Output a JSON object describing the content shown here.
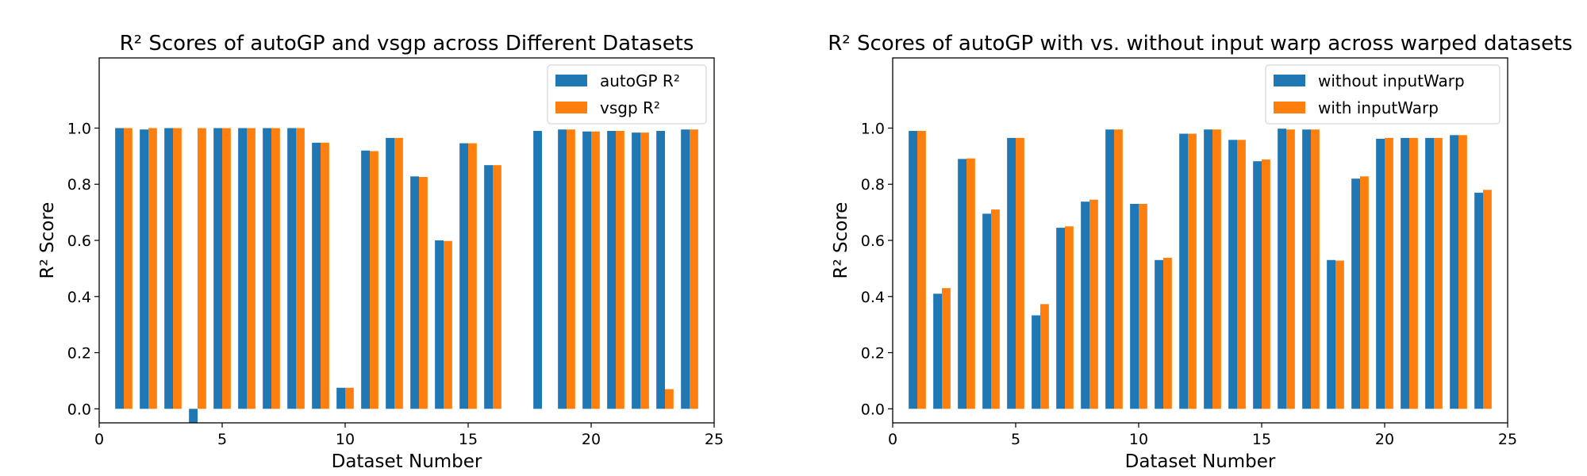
{
  "colors": {
    "series_a": "#1f77b4",
    "series_b": "#ff7f0e",
    "axes": "#000000",
    "legend_border": "#cccccc"
  },
  "chart_data": [
    {
      "type": "bar",
      "title": "R² Scores of autoGP and vsgp across Different Datasets",
      "xlabel": "Dataset Number",
      "ylabel": "R² Score",
      "xlim": [
        0,
        25
      ],
      "ylim": [
        -0.05,
        1.25
      ],
      "x_ticks": [
        0,
        5,
        10,
        15,
        20,
        25
      ],
      "y_ticks": [
        0.0,
        0.2,
        0.4,
        0.6,
        0.8,
        1.0
      ],
      "grid": false,
      "legend_position": "top-right",
      "x": [
        1,
        2,
        3,
        4,
        5,
        6,
        7,
        8,
        9,
        10,
        11,
        12,
        13,
        14,
        15,
        16,
        17,
        18,
        19,
        20,
        21,
        22,
        23,
        24
      ],
      "series": [
        {
          "name": "autoGP R²",
          "values": [
            1.0,
            0.995,
            1.0,
            -0.05,
            1.0,
            1.0,
            1.0,
            1.0,
            0.948,
            0.075,
            0.92,
            0.965,
            0.828,
            0.6,
            0.946,
            0.868,
            0.0,
            0.99,
            0.995,
            0.988,
            0.99,
            0.984,
            0.99,
            0.995
          ]
        },
        {
          "name": "vsgp R²",
          "values": [
            1.0,
            1.0,
            1.0,
            1.0,
            1.0,
            1.0,
            1.0,
            1.0,
            0.948,
            0.075,
            0.918,
            0.965,
            0.826,
            0.598,
            0.946,
            0.868,
            0.0,
            0.0,
            0.995,
            0.988,
            0.99,
            0.984,
            0.07,
            0.995
          ]
        }
      ]
    },
    {
      "type": "bar",
      "title": "R² Scores of autoGP with vs. without input warp across warped datasets",
      "xlabel": "Dataset Number",
      "ylabel": "R² Score",
      "xlim": [
        0,
        25
      ],
      "ylim": [
        -0.05,
        1.25
      ],
      "x_ticks": [
        0,
        5,
        10,
        15,
        20,
        25
      ],
      "y_ticks": [
        0.0,
        0.2,
        0.4,
        0.6,
        0.8,
        1.0
      ],
      "grid": false,
      "legend_position": "top-right",
      "x": [
        1,
        2,
        3,
        4,
        5,
        6,
        7,
        8,
        9,
        10,
        11,
        12,
        13,
        14,
        15,
        16,
        17,
        18,
        19,
        20,
        21,
        22,
        23,
        24
      ],
      "series": [
        {
          "name": "without inputWarp",
          "values": [
            0.99,
            0.41,
            0.89,
            0.695,
            0.965,
            0.333,
            0.645,
            0.738,
            0.995,
            0.73,
            0.53,
            0.98,
            0.995,
            0.958,
            0.882,
            0.998,
            0.995,
            0.53,
            0.82,
            0.962,
            0.965,
            0.965,
            0.975,
            0.77
          ]
        },
        {
          "name": "with inputWarp",
          "values": [
            0.99,
            0.43,
            0.892,
            0.71,
            0.965,
            0.373,
            0.65,
            0.745,
            0.995,
            0.73,
            0.538,
            0.98,
            0.995,
            0.958,
            0.888,
            0.995,
            0.995,
            0.528,
            0.828,
            0.965,
            0.965,
            0.965,
            0.975,
            0.78
          ]
        }
      ]
    }
  ]
}
